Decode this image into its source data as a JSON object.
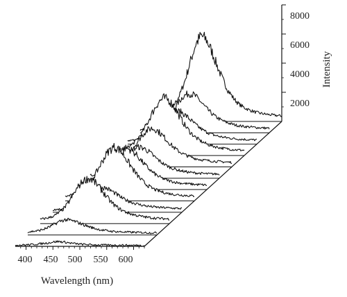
{
  "chart_data": {
    "type": "line",
    "style": "3d-waterfall",
    "xlabel": "Wavelength (nm)",
    "zlabel": "Intensity",
    "x_ticks": [
      "400",
      "450",
      "500",
      "550",
      "600"
    ],
    "z_ticks": [
      "2000",
      "4000",
      "6000",
      "8000"
    ],
    "xlim": [
      380,
      620
    ],
    "zlim": [
      0,
      8000
    ],
    "x": [
      380,
      390,
      400,
      410,
      420,
      430,
      440,
      450,
      460,
      470,
      480,
      490,
      500,
      510,
      520,
      530,
      540,
      550,
      560,
      570,
      580,
      590,
      600,
      610,
      620
    ],
    "series": [
      {
        "values": [
          80,
          90,
          100,
          120,
          150,
          190,
          230,
          300,
          330,
          300,
          240,
          190,
          150,
          130,
          110,
          100,
          90,
          90,
          80,
          80,
          80,
          70,
          70,
          70,
          60
        ]
      },
      {
        "values": [
          200,
          250,
          300,
          400,
          550,
          750,
          950,
          1050,
          1000,
          900,
          760,
          620,
          500,
          400,
          330,
          280,
          240,
          220,
          200,
          190,
          180,
          170,
          160,
          150,
          150
        ]
      },
      {
        "values": [
          300,
          360,
          450,
          620,
          900,
          1300,
          1900,
          2500,
          2950,
          3100,
          2900,
          2500,
          2000,
          1550,
          1200,
          950,
          780,
          650,
          560,
          480,
          430,
          390,
          360,
          340,
          320
        ]
      },
      {
        "values": [
          150,
          200,
          260,
          360,
          500,
          700,
          950,
          1250,
          1550,
          1700,
          1650,
          1450,
          1200,
          950,
          780,
          640,
          540,
          460,
          400,
          360,
          330,
          310,
          290,
          270,
          260
        ]
      },
      {
        "values": [
          300,
          380,
          480,
          680,
          1000,
          1450,
          2100,
          2800,
          3400,
          3700,
          3550,
          3100,
          2500,
          1950,
          1500,
          1150,
          900,
          730,
          610,
          520,
          460,
          420,
          390,
          360,
          340
        ]
      },
      {
        "values": [
          300,
          360,
          450,
          620,
          880,
          1250,
          1750,
          2300,
          2700,
          2850,
          2700,
          2350,
          1900,
          1500,
          1160,
          900,
          730,
          600,
          510,
          450,
          410,
          380,
          350,
          330,
          310
        ]
      },
      {
        "values": [
          200,
          250,
          320,
          440,
          620,
          880,
          1250,
          1650,
          2000,
          2150,
          2050,
          1800,
          1450,
          1150,
          900,
          720,
          590,
          500,
          430,
          380,
          350,
          320,
          300,
          290,
          280
        ]
      },
      {
        "values": [
          200,
          250,
          320,
          460,
          680,
          1000,
          1450,
          2000,
          2450,
          2650,
          2550,
          2200,
          1800,
          1400,
          1100,
          880,
          720,
          600,
          510,
          450,
          410,
          380,
          350,
          330,
          310
        ]
      },
      {
        "values": [
          300,
          380,
          500,
          720,
          1060,
          1560,
          2250,
          3000,
          3650,
          3950,
          3800,
          3300,
          2650,
          2050,
          1580,
          1220,
          970,
          790,
          660,
          570,
          500,
          450,
          410,
          380,
          360
        ]
      },
      {
        "values": [
          200,
          250,
          320,
          450,
          650,
          950,
          1350,
          1800,
          2150,
          2300,
          2200,
          1900,
          1550,
          1220,
          960,
          770,
          630,
          530,
          460,
          410,
          370,
          340,
          320,
          300,
          290
        ]
      },
      {
        "values": [
          200,
          260,
          340,
          480,
          700,
          1050,
          1500,
          2050,
          2500,
          2700,
          2600,
          2250,
          1800,
          1420,
          1110,
          880,
          720,
          600,
          510,
          450,
          410,
          380,
          350,
          330,
          310
        ]
      },
      {
        "values": [
          300,
          380,
          500,
          750,
          1150,
          1800,
          2800,
          4100,
          5300,
          5900,
          5600,
          4800,
          3800,
          2900,
          2150,
          1600,
          1200,
          950,
          780,
          650,
          560,
          500,
          450,
          410,
          380
        ]
      }
    ]
  }
}
